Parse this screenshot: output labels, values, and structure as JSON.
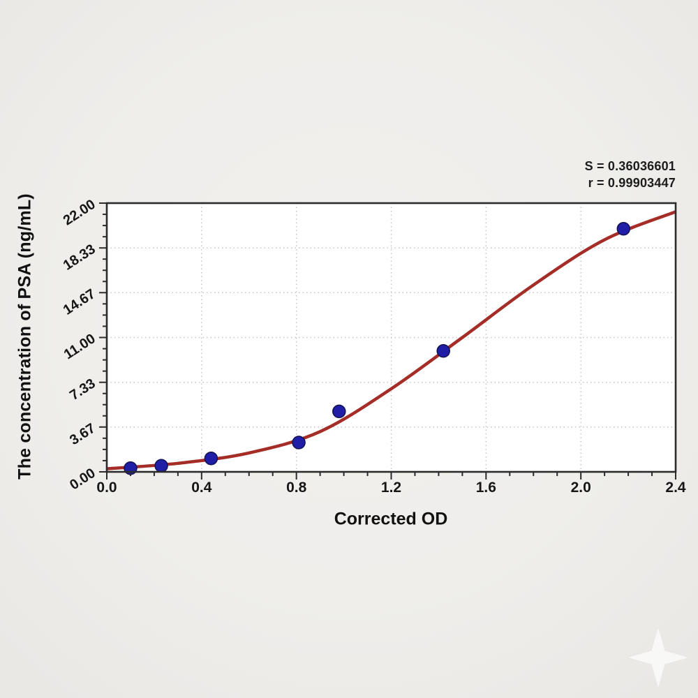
{
  "annotation": {
    "s_line": "S = 0.36036601",
    "r_line": "r = 0.99903447"
  },
  "watermark": {
    "icon": "four-point-sparkle"
  },
  "chart_data": {
    "type": "scatter",
    "title": "",
    "xlabel": "Corrected OD",
    "ylabel": "The concentration of PSA (ng/mL)",
    "xlim": [
      0.0,
      2.4
    ],
    "ylim": [
      0.0,
      22.0
    ],
    "x_ticks": [
      0.0,
      0.4,
      0.8,
      1.2,
      1.6,
      2.0,
      2.4
    ],
    "x_tick_labels": [
      "0.0",
      "0.4",
      "0.8",
      "1.2",
      "1.6",
      "2.0",
      "2.4"
    ],
    "x_minor_divisions": 4,
    "y_ticks": [
      0.0,
      3.67,
      7.33,
      11.0,
      14.67,
      18.33,
      22.0
    ],
    "y_tick_labels": [
      "0.00",
      "3.67",
      "7.33",
      "11.00",
      "14.67",
      "18.33",
      "22.00"
    ],
    "y_minor_divisions": 4,
    "grid": {
      "show": true,
      "style": "dotted",
      "color": "#c7c5c2"
    },
    "legend": "none",
    "series": [
      {
        "name": "standard-points",
        "type": "scatter",
        "x": [
          0.1,
          0.23,
          0.44,
          0.81,
          0.98,
          1.42,
          2.18
        ],
        "y": [
          0.3,
          0.5,
          1.1,
          2.4,
          4.95,
          9.9,
          19.9
        ],
        "color": "#201da6",
        "edge_color": "#12124f"
      },
      {
        "name": "fitted-sigmoid-curve",
        "type": "line",
        "x": [
          0.0,
          0.3,
          0.6,
          0.9,
          1.2,
          1.5,
          1.8,
          2.1,
          2.4
        ],
        "y": [
          0.25,
          0.7,
          1.55,
          3.3,
          6.8,
          11.0,
          15.3,
          19.0,
          21.3
        ],
        "color": "#a52d28"
      }
    ],
    "fit_stats": {
      "S": "0.36036601",
      "r": "0.99903447"
    },
    "axis_color": "#2b2b2b",
    "tick_label_color": "#161616",
    "plot_bg": "#ffffff"
  }
}
